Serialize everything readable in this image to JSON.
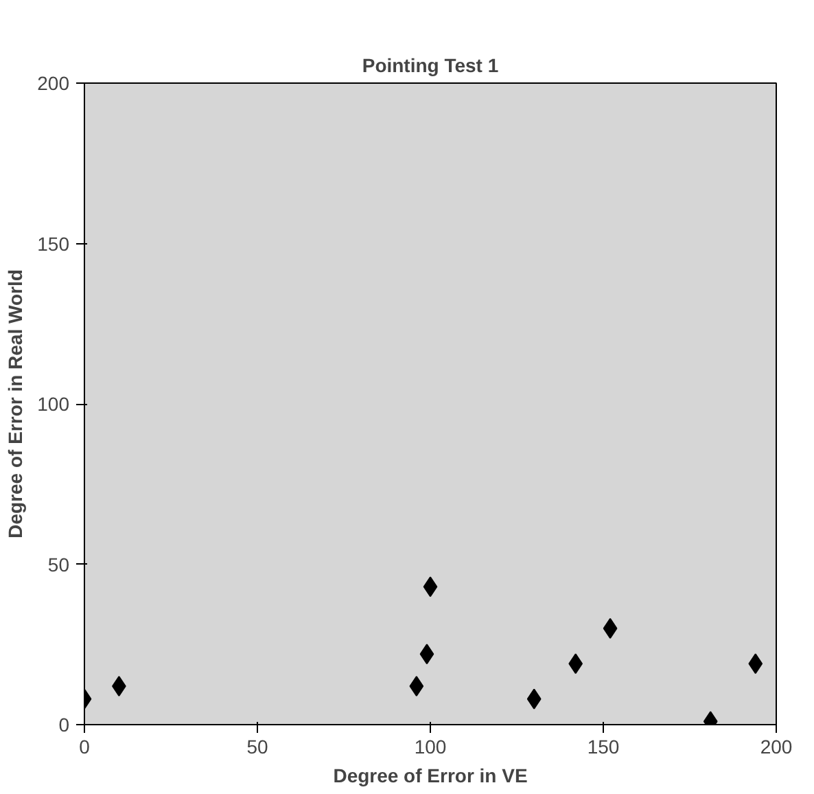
{
  "chart_data": {
    "type": "scatter",
    "title": "Pointing Test 1",
    "xlabel": "Degree of Error in VE",
    "ylabel": "Degree of Error in Real World",
    "x": [
      0,
      10,
      96,
      99,
      100,
      130,
      142,
      152,
      181,
      194
    ],
    "series": [
      {
        "color": "#000000",
        "values": [
          8,
          12,
          12,
          22,
          43,
          8,
          19,
          30,
          1,
          19
        ]
      }
    ],
    "xlim": [
      0,
      200
    ],
    "ylim": [
      0,
      200
    ],
    "xticks": [
      0,
      50,
      100,
      150,
      200
    ],
    "yticks": [
      0,
      50,
      100,
      150,
      200
    ],
    "grid": false,
    "marker": "diamond"
  }
}
